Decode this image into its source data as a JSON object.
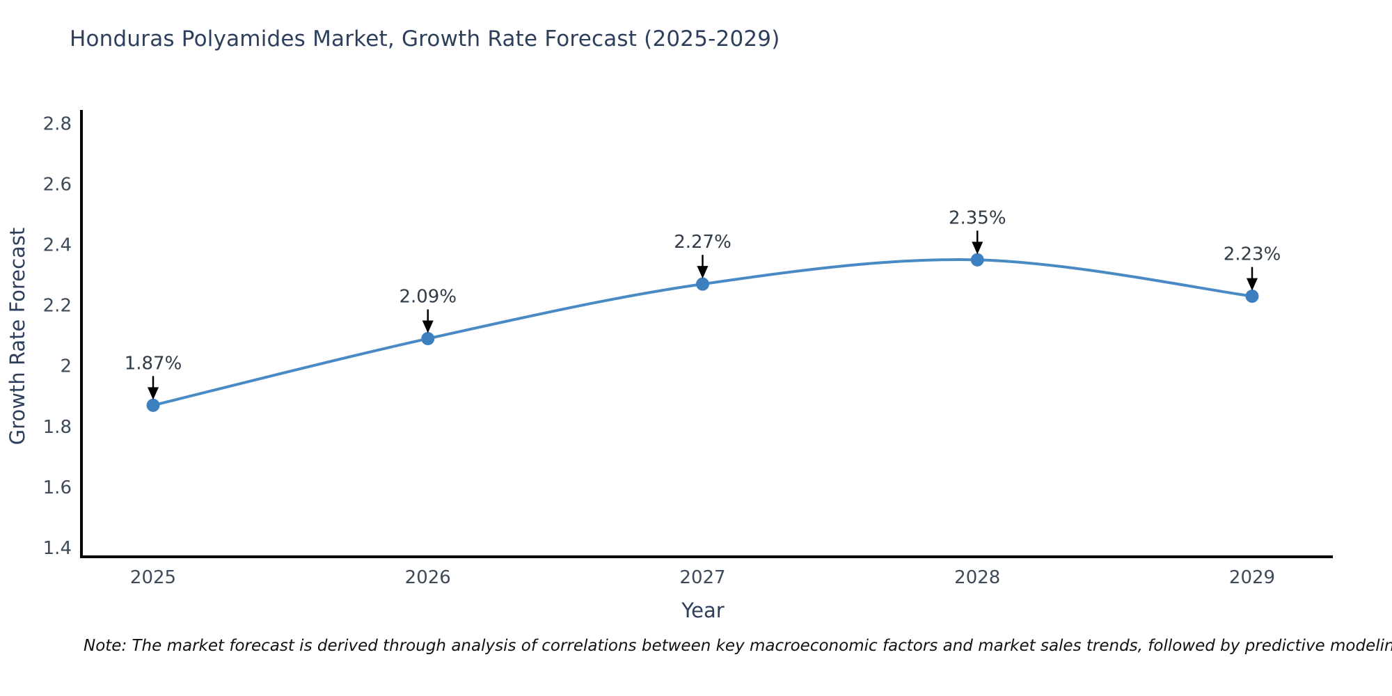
{
  "title": "Honduras Polyamides Market, Growth Rate Forecast (2025-2029)",
  "note": "Note: The market forecast is derived through analysis of correlations between key macroeconomic factors and market sales trends, followed by predictive modeling to project future sales",
  "chart_data": {
    "type": "line",
    "title": "Honduras Polyamides Market, Growth Rate Forecast (2025-2029)",
    "categories": [
      "2025",
      "2026",
      "2027",
      "2028",
      "2029"
    ],
    "series": [
      {
        "name": "Growth Rate Forecast",
        "values": [
          1.87,
          2.09,
          2.27,
          2.35,
          2.23
        ]
      }
    ],
    "point_labels": [
      "1.87%",
      "2.09%",
      "2.27%",
      "2.35%",
      "2.23%"
    ],
    "xlabel": "Year",
    "ylabel": "Growth Rate Forecast",
    "y_ticks": [
      "1.4",
      "1.6",
      "1.8",
      "2",
      "2.2",
      "2.4",
      "2.6",
      "2.8"
    ],
    "y_tick_values": [
      1.4,
      1.6,
      1.8,
      2.0,
      2.2,
      2.4,
      2.6,
      2.8
    ],
    "ylim": [
      1.37,
      2.84
    ],
    "grid": false,
    "legend": "none",
    "line_shape": "spline",
    "colors": {
      "line": "#4a8ac4",
      "marker": "#3d80c0",
      "axis": "#000000",
      "title_text": "#2e3f5c",
      "tick_text": "#3d4a59",
      "annotation_text": "#2f3b47",
      "annotation_arrow": "#000000",
      "background": "#ffffff"
    }
  }
}
